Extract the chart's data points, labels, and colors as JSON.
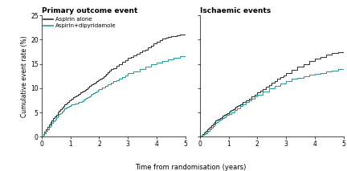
{
  "title_left": "Primary outcome event",
  "title_right": "Ischaemic events",
  "xlabel": "Time from randomisation (years)",
  "ylabel": "Cumulative event rate (%)",
  "xlim": [
    0,
    5
  ],
  "ylim": [
    0,
    25
  ],
  "yticks": [
    0,
    5,
    10,
    15,
    20,
    25
  ],
  "xticks": [
    0,
    1,
    2,
    3,
    4,
    5
  ],
  "color_aspirin": "#333333",
  "color_combo": "#2a9a96",
  "legend_labels": [
    "Aspirin alone",
    "Aspirin+dipyridamole"
  ],
  "left_aspirin_x": [
    0,
    0.05,
    0.1,
    0.15,
    0.2,
    0.25,
    0.3,
    0.35,
    0.4,
    0.45,
    0.5,
    0.55,
    0.6,
    0.65,
    0.7,
    0.75,
    0.8,
    0.85,
    0.9,
    0.95,
    1.0,
    1.05,
    1.1,
    1.15,
    1.2,
    1.25,
    1.3,
    1.35,
    1.4,
    1.45,
    1.5,
    1.55,
    1.6,
    1.65,
    1.7,
    1.75,
    1.8,
    1.85,
    1.9,
    1.95,
    2.0,
    2.05,
    2.1,
    2.15,
    2.2,
    2.25,
    2.3,
    2.35,
    2.4,
    2.5,
    2.6,
    2.7,
    2.8,
    2.9,
    3.0,
    3.1,
    3.2,
    3.3,
    3.4,
    3.5,
    3.6,
    3.7,
    3.8,
    3.9,
    4.0,
    4.1,
    4.2,
    4.3,
    4.4,
    4.5,
    4.6,
    4.7,
    4.8,
    4.9,
    5.0
  ],
  "left_aspirin_y": [
    0,
    0.6,
    1.1,
    1.6,
    2.1,
    2.6,
    3.0,
    3.4,
    3.8,
    4.2,
    4.6,
    5.0,
    5.4,
    5.7,
    6.0,
    6.3,
    6.6,
    6.9,
    7.2,
    7.5,
    7.7,
    7.9,
    8.1,
    8.3,
    8.5,
    8.7,
    8.9,
    9.1,
    9.3,
    9.5,
    9.7,
    9.9,
    10.2,
    10.4,
    10.6,
    10.8,
    11.0,
    11.2,
    11.4,
    11.6,
    11.8,
    12.0,
    12.2,
    12.4,
    12.7,
    13.0,
    13.3,
    13.6,
    13.9,
    14.2,
    14.6,
    15.0,
    15.4,
    15.8,
    16.2,
    16.5,
    16.8,
    17.1,
    17.4,
    17.7,
    18.0,
    18.4,
    18.8,
    19.2,
    19.6,
    19.9,
    20.2,
    20.4,
    20.6,
    20.7,
    20.8,
    20.9,
    21.0,
    21.1,
    21.2
  ],
  "left_combo_x": [
    0,
    0.05,
    0.1,
    0.15,
    0.2,
    0.25,
    0.3,
    0.35,
    0.4,
    0.45,
    0.5,
    0.55,
    0.6,
    0.65,
    0.7,
    0.75,
    0.8,
    0.85,
    0.9,
    0.95,
    1.0,
    1.05,
    1.1,
    1.15,
    1.2,
    1.25,
    1.3,
    1.35,
    1.4,
    1.45,
    1.5,
    1.55,
    1.6,
    1.65,
    1.7,
    1.75,
    1.8,
    1.85,
    1.9,
    1.95,
    2.0,
    2.1,
    2.2,
    2.3,
    2.4,
    2.5,
    2.6,
    2.7,
    2.8,
    2.9,
    3.0,
    3.2,
    3.4,
    3.6,
    3.8,
    4.0,
    4.2,
    4.4,
    4.6,
    4.8,
    5.0
  ],
  "left_combo_y": [
    0,
    0.4,
    0.8,
    1.2,
    1.6,
    2.0,
    2.4,
    2.8,
    3.2,
    3.6,
    4.0,
    4.4,
    4.7,
    4.9,
    5.2,
    5.5,
    5.8,
    6.0,
    6.2,
    6.4,
    6.5,
    6.6,
    6.7,
    6.8,
    6.9,
    7.0,
    7.1,
    7.2,
    7.4,
    7.6,
    7.8,
    8.0,
    8.2,
    8.4,
    8.6,
    8.8,
    9.0,
    9.2,
    9.4,
    9.6,
    9.8,
    10.2,
    10.5,
    10.8,
    11.1,
    11.4,
    11.7,
    12.0,
    12.3,
    12.7,
    13.1,
    13.5,
    14.0,
    14.5,
    14.9,
    15.2,
    15.6,
    15.9,
    16.2,
    16.6,
    17.0
  ],
  "right_aspirin_x": [
    0,
    0.05,
    0.1,
    0.15,
    0.2,
    0.25,
    0.3,
    0.35,
    0.4,
    0.45,
    0.5,
    0.55,
    0.6,
    0.65,
    0.7,
    0.75,
    0.8,
    0.85,
    0.9,
    0.95,
    1.0,
    1.05,
    1.1,
    1.15,
    1.2,
    1.25,
    1.3,
    1.35,
    1.4,
    1.45,
    1.5,
    1.6,
    1.7,
    1.8,
    1.9,
    2.0,
    2.1,
    2.2,
    2.3,
    2.4,
    2.5,
    2.6,
    2.7,
    2.8,
    2.9,
    3.0,
    3.2,
    3.4,
    3.6,
    3.8,
    4.0,
    4.2,
    4.4,
    4.6,
    4.8,
    5.0
  ],
  "right_aspirin_y": [
    0,
    0.3,
    0.6,
    0.9,
    1.2,
    1.5,
    1.8,
    2.1,
    2.4,
    2.7,
    3.0,
    3.3,
    3.5,
    3.7,
    3.9,
    4.1,
    4.3,
    4.5,
    4.7,
    4.9,
    5.1,
    5.3,
    5.5,
    5.7,
    5.9,
    6.1,
    6.3,
    6.5,
    6.7,
    6.9,
    7.1,
    7.5,
    7.9,
    8.3,
    8.7,
    9.1,
    9.5,
    9.9,
    10.3,
    10.7,
    11.1,
    11.5,
    11.9,
    12.3,
    12.7,
    13.1,
    13.8,
    14.4,
    15.0,
    15.6,
    16.1,
    16.5,
    16.9,
    17.2,
    17.5,
    17.8
  ],
  "right_combo_x": [
    0,
    0.05,
    0.1,
    0.15,
    0.2,
    0.25,
    0.3,
    0.35,
    0.4,
    0.45,
    0.5,
    0.55,
    0.6,
    0.65,
    0.7,
    0.75,
    0.8,
    0.85,
    0.9,
    0.95,
    1.0,
    1.1,
    1.2,
    1.3,
    1.4,
    1.5,
    1.6,
    1.7,
    1.8,
    1.9,
    2.0,
    2.2,
    2.4,
    2.6,
    2.8,
    3.0,
    3.2,
    3.4,
    3.6,
    3.8,
    4.0,
    4.2,
    4.4,
    4.6,
    4.8,
    5.0
  ],
  "right_combo_y": [
    0,
    0.2,
    0.4,
    0.6,
    0.8,
    1.0,
    1.3,
    1.6,
    1.9,
    2.2,
    2.5,
    2.8,
    3.1,
    3.3,
    3.5,
    3.7,
    3.9,
    4.1,
    4.3,
    4.5,
    4.7,
    5.1,
    5.5,
    5.9,
    6.3,
    6.7,
    7.1,
    7.5,
    7.9,
    8.3,
    8.7,
    9.4,
    10.0,
    10.5,
    11.0,
    11.5,
    11.9,
    12.2,
    12.5,
    12.8,
    13.0,
    13.2,
    13.5,
    13.7,
    13.9,
    14.1
  ]
}
